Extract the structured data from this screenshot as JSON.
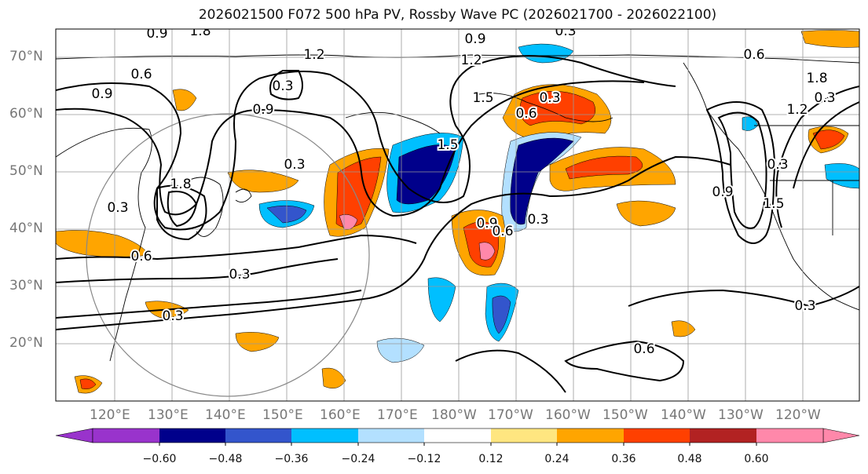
{
  "title": "2026021500 F072 500 hPa PV, Rossby Wave PC (2026021700 - 2026022100)",
  "lat_labels": [
    "70°N",
    "60°N",
    "50°N",
    "40°N",
    "30°N",
    "20°N"
  ],
  "lon_labels": [
    "120°E",
    "130°E",
    "140°E",
    "150°E",
    "160°E",
    "170°E",
    "180°W",
    "170°W",
    "160°W",
    "150°W",
    "140°W",
    "130°W",
    "120°W"
  ],
  "contour_labels": [
    "0.9",
    "0.3",
    "0.9",
    "1.2",
    "1.5",
    "0.3",
    "0.6",
    "0.3",
    "1.8",
    "0.3",
    "0.9",
    "0.6",
    "0.9",
    "0.3",
    "0.3",
    "0.3",
    "0.6",
    "0.3",
    "1.5",
    "1.2",
    "1.8",
    "0.3",
    "0.6",
    "0.9",
    "1.5",
    "0.6",
    "0.3",
    "1.8",
    "0.3",
    "0.9",
    "1.2",
    "0.6"
  ],
  "colorbar": {
    "ticks": [
      "−0.60",
      "−0.48",
      "−0.36",
      "−0.24",
      "−0.12",
      "0.12",
      "0.24",
      "0.36",
      "0.48",
      "0.60"
    ],
    "colors": [
      "#9933cc",
      "#00008b",
      "#3355cc",
      "#00bfff",
      "#b3e0ff",
      "#ffffff",
      "#ffe680",
      "#ffa500",
      "#ff4000",
      "#b22222",
      "#ff88aa"
    ]
  }
}
